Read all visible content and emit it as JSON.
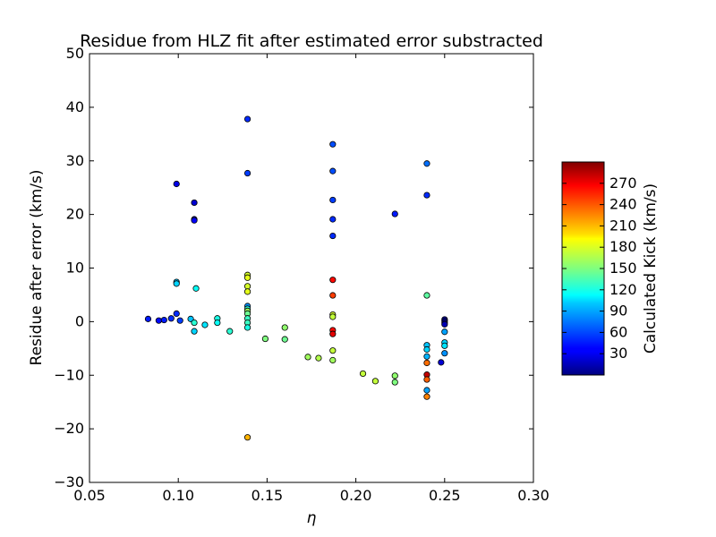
{
  "chart_data": {
    "type": "scatter",
    "title": "Residue from HLZ fit after estimated error substracted",
    "xlabel": "η",
    "ylabel": "Residue after error (km/s)",
    "xlim": [
      0.05,
      0.3
    ],
    "ylim": [
      -30,
      50
    ],
    "x_ticks": [
      "0.05",
      "0.10",
      "0.15",
      "0.20",
      "0.25",
      "0.30"
    ],
    "y_ticks": [
      "−30",
      "−20",
      "−10",
      "0",
      "10",
      "20",
      "30",
      "40",
      "50"
    ],
    "grid": false,
    "colorbar": {
      "label": "Calculated Kick (km/s)",
      "range": [
        0,
        300
      ],
      "colormap": "jet",
      "ticks": [
        "30",
        "60",
        "90",
        "120",
        "150",
        "180",
        "210",
        "240",
        "270"
      ]
    },
    "points": [
      {
        "x": 0.083,
        "y": 0.5,
        "c": 45
      },
      {
        "x": 0.089,
        "y": 0.2,
        "c": 40
      },
      {
        "x": 0.092,
        "y": 0.3,
        "c": 45
      },
      {
        "x": 0.096,
        "y": 0.6,
        "c": 50
      },
      {
        "x": 0.099,
        "y": 1.5,
        "c": 50
      },
      {
        "x": 0.101,
        "y": 0.2,
        "c": 55
      },
      {
        "x": 0.099,
        "y": 25.7,
        "c": 30
      },
      {
        "x": 0.099,
        "y": 7.4,
        "c": 95
      },
      {
        "x": 0.099,
        "y": 7.1,
        "c": 100
      },
      {
        "x": 0.107,
        "y": 0.5,
        "c": 95
      },
      {
        "x": 0.109,
        "y": 22.2,
        "c": 25
      },
      {
        "x": 0.109,
        "y": 19.1,
        "c": 30
      },
      {
        "x": 0.109,
        "y": 18.9,
        "c": 35
      },
      {
        "x": 0.109,
        "y": -0.2,
        "c": 125
      },
      {
        "x": 0.109,
        "y": -1.8,
        "c": 100
      },
      {
        "x": 0.11,
        "y": 6.2,
        "c": 115
      },
      {
        "x": 0.115,
        "y": -0.6,
        "c": 105
      },
      {
        "x": 0.122,
        "y": 0.6,
        "c": 120
      },
      {
        "x": 0.122,
        "y": -0.2,
        "c": 115
      },
      {
        "x": 0.129,
        "y": -1.8,
        "c": 125
      },
      {
        "x": 0.139,
        "y": 37.8,
        "c": 50
      },
      {
        "x": 0.139,
        "y": 27.7,
        "c": 55
      },
      {
        "x": 0.139,
        "y": 8.7,
        "c": 175
      },
      {
        "x": 0.139,
        "y": 8.2,
        "c": 180
      },
      {
        "x": 0.139,
        "y": 6.6,
        "c": 175
      },
      {
        "x": 0.139,
        "y": 5.6,
        "c": 180
      },
      {
        "x": 0.139,
        "y": 2.9,
        "c": 80
      },
      {
        "x": 0.139,
        "y": 2.4,
        "c": 125
      },
      {
        "x": 0.139,
        "y": 2.0,
        "c": 160
      },
      {
        "x": 0.139,
        "y": 1.5,
        "c": 145
      },
      {
        "x": 0.139,
        "y": 0.6,
        "c": 130
      },
      {
        "x": 0.139,
        "y": -0.2,
        "c": 130
      },
      {
        "x": 0.139,
        "y": -1.1,
        "c": 120
      },
      {
        "x": 0.139,
        "y": -21.6,
        "c": 210
      },
      {
        "x": 0.149,
        "y": -3.2,
        "c": 150
      },
      {
        "x": 0.16,
        "y": -1.1,
        "c": 155
      },
      {
        "x": 0.16,
        "y": -3.3,
        "c": 145
      },
      {
        "x": 0.173,
        "y": -6.6,
        "c": 160
      },
      {
        "x": 0.179,
        "y": -6.8,
        "c": 165
      },
      {
        "x": 0.187,
        "y": 33.1,
        "c": 60
      },
      {
        "x": 0.187,
        "y": 28.1,
        "c": 60
      },
      {
        "x": 0.187,
        "y": 22.7,
        "c": 55
      },
      {
        "x": 0.187,
        "y": 19.1,
        "c": 50
      },
      {
        "x": 0.187,
        "y": 16.0,
        "c": 50
      },
      {
        "x": 0.187,
        "y": 7.8,
        "c": 260
      },
      {
        "x": 0.187,
        "y": 4.9,
        "c": 245
      },
      {
        "x": 0.187,
        "y": 1.3,
        "c": 175
      },
      {
        "x": 0.187,
        "y": 0.9,
        "c": 170
      },
      {
        "x": 0.187,
        "y": -1.6,
        "c": 260
      },
      {
        "x": 0.187,
        "y": -2.3,
        "c": 270
      },
      {
        "x": 0.187,
        "y": -5.4,
        "c": 170
      },
      {
        "x": 0.187,
        "y": -7.2,
        "c": 160
      },
      {
        "x": 0.204,
        "y": -9.7,
        "c": 170
      },
      {
        "x": 0.211,
        "y": -11.1,
        "c": 170
      },
      {
        "x": 0.222,
        "y": 20.1,
        "c": 45
      },
      {
        "x": 0.222,
        "y": -10.1,
        "c": 155
      },
      {
        "x": 0.222,
        "y": -11.3,
        "c": 150
      },
      {
        "x": 0.24,
        "y": 29.5,
        "c": 70
      },
      {
        "x": 0.24,
        "y": 23.6,
        "c": 50
      },
      {
        "x": 0.24,
        "y": 4.9,
        "c": 140
      },
      {
        "x": 0.24,
        "y": -4.4,
        "c": 95
      },
      {
        "x": 0.24,
        "y": -5.2,
        "c": 100
      },
      {
        "x": 0.24,
        "y": -6.5,
        "c": 90
      },
      {
        "x": 0.24,
        "y": -7.7,
        "c": 230
      },
      {
        "x": 0.24,
        "y": -9.9,
        "c": 280
      },
      {
        "x": 0.24,
        "y": -10.8,
        "c": 235
      },
      {
        "x": 0.24,
        "y": -12.8,
        "c": 85
      },
      {
        "x": 0.24,
        "y": -14.0,
        "c": 225
      },
      {
        "x": 0.248,
        "y": -7.6,
        "c": 25
      },
      {
        "x": 0.25,
        "y": 0.4,
        "c": 15
      },
      {
        "x": 0.25,
        "y": 0.1,
        "c": 20
      },
      {
        "x": 0.25,
        "y": -0.2,
        "c": 10
      },
      {
        "x": 0.25,
        "y": -0.5,
        "c": 15
      },
      {
        "x": 0.25,
        "y": -1.9,
        "c": 85
      },
      {
        "x": 0.25,
        "y": -3.9,
        "c": 100
      },
      {
        "x": 0.25,
        "y": -4.5,
        "c": 105
      },
      {
        "x": 0.25,
        "y": -5.9,
        "c": 80
      }
    ]
  }
}
